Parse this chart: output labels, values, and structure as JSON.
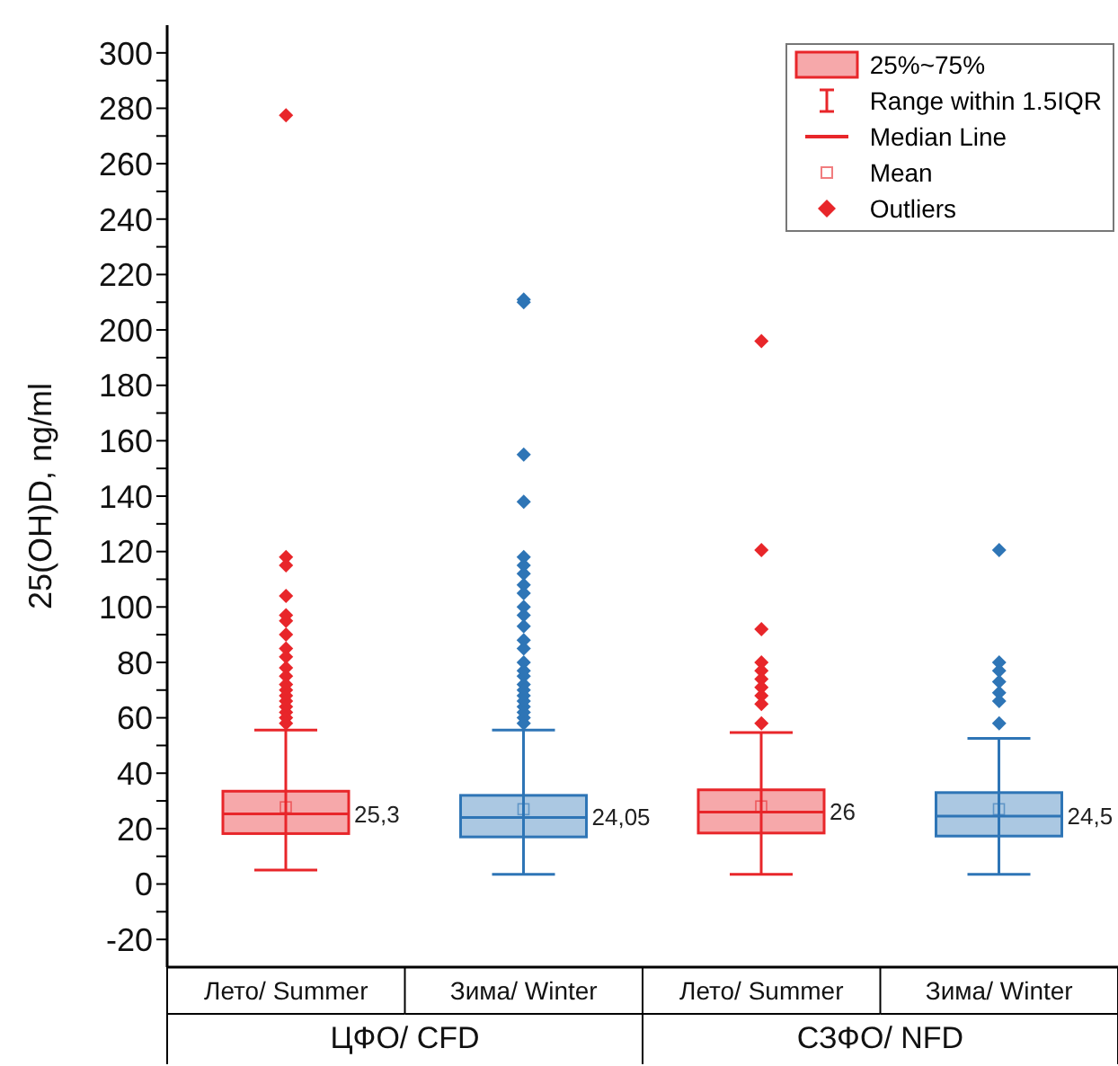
{
  "chart_data": {
    "type": "box",
    "ylabel": "25(OH)D, ng/ml",
    "categories": [
      "Лето/ Summer",
      "Зима/ Winter",
      "Лето/ Summer",
      "Зима/ Winter"
    ],
    "colors": [
      "#e8262a",
      "#2e75b6",
      "#e8262a",
      "#2e75b6"
    ],
    "boxes": [
      {
        "low": 5,
        "q1": 18.2,
        "median": 25.3,
        "q3": 33.5,
        "high": 55.6,
        "mean": 27.7,
        "outliers": [
          277.5,
          118,
          115,
          104,
          97,
          95,
          90,
          85,
          82,
          78,
          75,
          72,
          70,
          68,
          66,
          64,
          62,
          60,
          58
        ]
      },
      {
        "low": 3.5,
        "q1": 17,
        "median": 24.05,
        "q3": 32,
        "high": 55.6,
        "mean": 27,
        "outliers": [
          211,
          210,
          155,
          138,
          118,
          115,
          112,
          108,
          105,
          100,
          97,
          93,
          88,
          85,
          80,
          77,
          75,
          72,
          70,
          68,
          66,
          64,
          62,
          60,
          58
        ]
      },
      {
        "low": 3.5,
        "q1": 18.4,
        "median": 26,
        "q3": 34,
        "high": 54.7,
        "mean": 28,
        "outliers": [
          196,
          120.5,
          92,
          80,
          77,
          74,
          71,
          68,
          65,
          58
        ]
      },
      {
        "low": 3.5,
        "q1": 17.3,
        "median": 24.5,
        "q3": 33,
        "high": 52.6,
        "mean": 27,
        "outliers": [
          120.5,
          80,
          77,
          73,
          69,
          66,
          58
        ]
      }
    ],
    "value_labels": [
      "25,3",
      "24,05",
      "26",
      "24,5"
    ],
    "ylim": [
      -30,
      310
    ],
    "yticks": [
      -20,
      {
        "value": -10,
        "label": null
      },
      0,
      {
        "value": 10,
        "label": null
      },
      20,
      {
        "value": 30,
        "label": null
      },
      40,
      {
        "value": 50,
        "label": null
      },
      60,
      {
        "value": 70,
        "label": null
      },
      80,
      {
        "value": 90,
        "label": null
      },
      100,
      {
        "value": 110,
        "label": null
      },
      120,
      {
        "value": 130,
        "label": null
      },
      140,
      {
        "value": 150,
        "label": null
      },
      160,
      {
        "value": 170,
        "label": null
      },
      180,
      {
        "value": 190,
        "label": null
      },
      200,
      {
        "value": 210,
        "label": null
      },
      220,
      {
        "value": 230,
        "label": null
      },
      240,
      {
        "value": 250,
        "label": null
      },
      260,
      {
        "value": 270,
        "label": null
      },
      280,
      {
        "value": 290,
        "label": null
      },
      300
    ],
    "annotations": [
      "ЦФО/ CFD",
      "СЗФО/ NFD",
      "25%~75%",
      "Range within 1.5IQR",
      "Median Line",
      "Mean",
      "Outliers"
    ],
    "marker": "diamond"
  }
}
